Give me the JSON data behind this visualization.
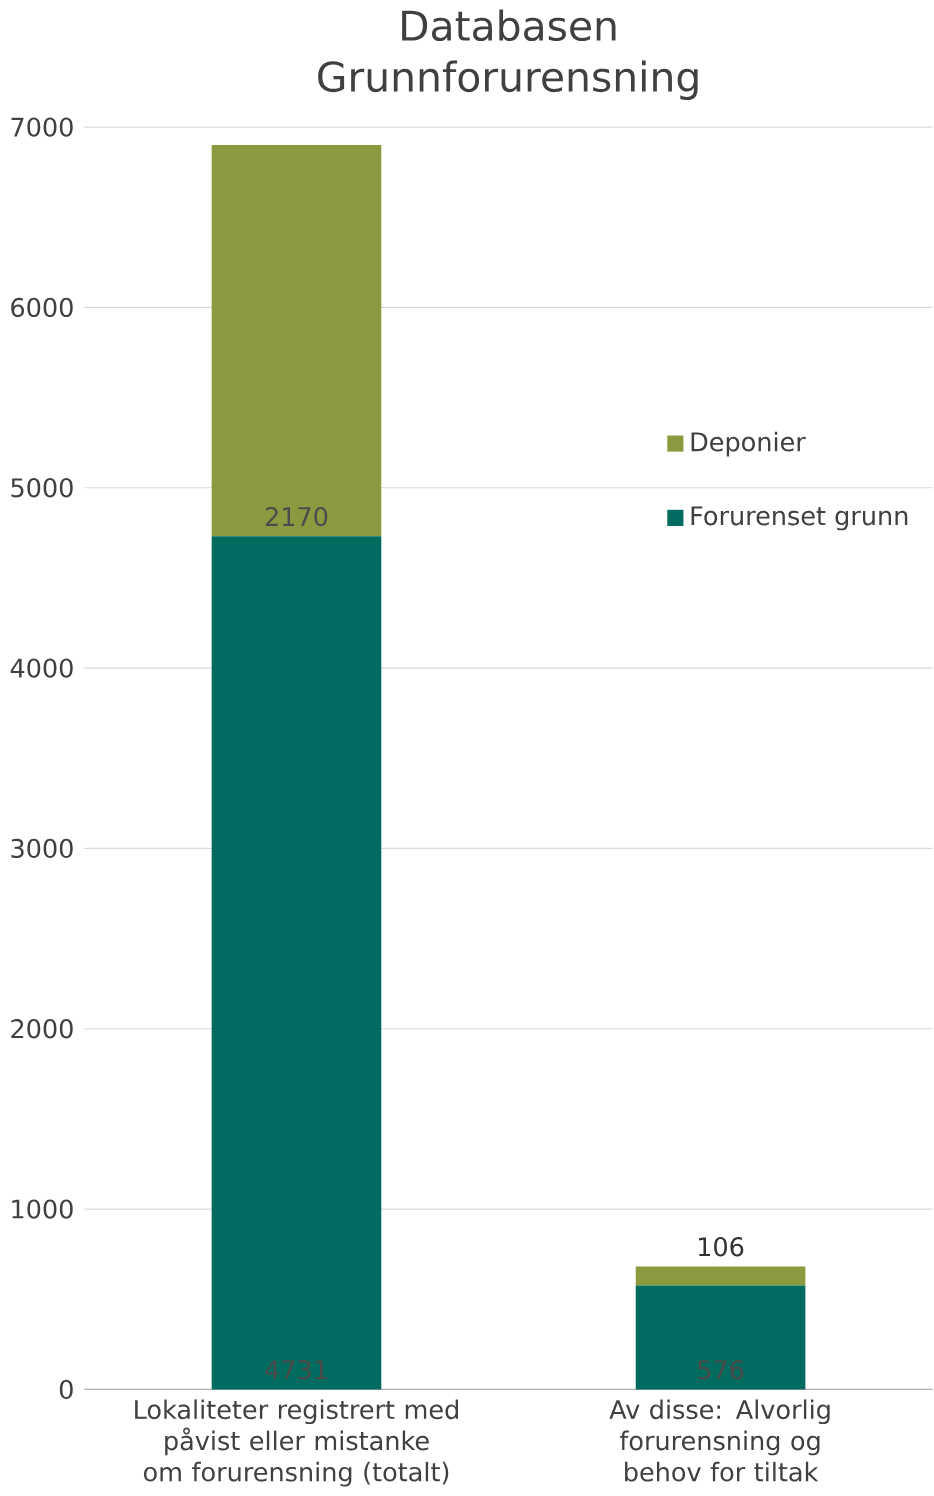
{
  "chart_data": {
    "type": "bar",
    "title": "Databasen Grunnforurensning",
    "categories": [
      "Lokaliteter registrert med påvist eller mistanke om forurensning (totalt)",
      "Av disse: Alvorlig forurensning og behov for tiltak"
    ],
    "stacked": true,
    "series": [
      {
        "name": "Forurenset grunn",
        "color": "#006b5e",
        "values": [
          4731,
          576
        ]
      },
      {
        "name": "Deponier",
        "color": "#8c9a3f",
        "values": [
          2170,
          106
        ]
      }
    ],
    "ylim": [
      0,
      7000
    ],
    "yticks": [
      0,
      1000,
      2000,
      3000,
      4000,
      5000,
      6000,
      7000
    ],
    "grid": "y",
    "legend": "right",
    "data_labels": true
  }
}
